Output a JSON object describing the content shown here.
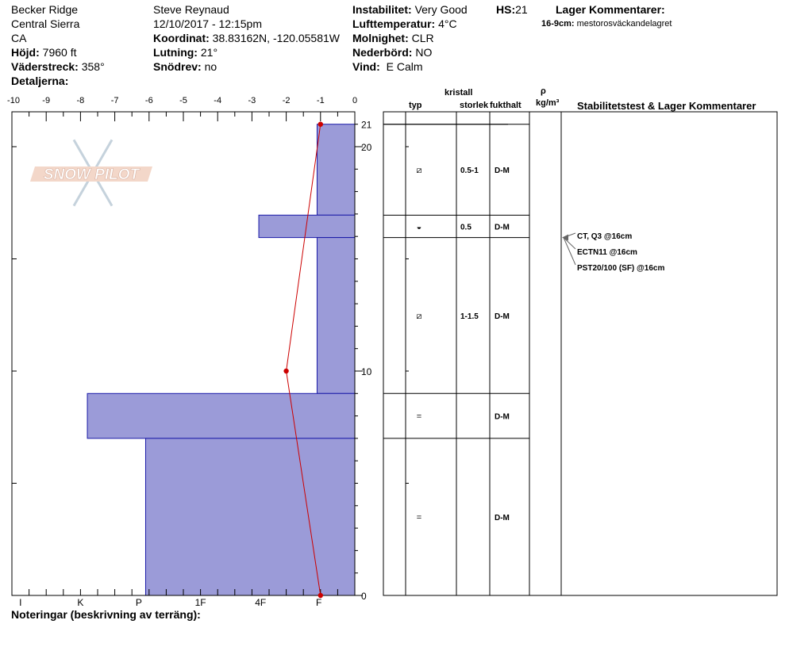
{
  "header": {
    "location": "Becker Ridge",
    "range": "Central Sierra",
    "state": "CA",
    "elevation_label": "Höjd:",
    "elevation": "7960 ft",
    "aspect_label": "Väderstreck:",
    "aspect": "358°",
    "details_label": "Detaljerna:",
    "observer": "Steve Reynaud",
    "datetime": "12/10/2017 - 12:15pm",
    "coord_label": "Koordinat:",
    "coord": "38.83162N, -120.05581W",
    "slope_label": "Lutning:",
    "slope": "21°",
    "drift_label": "Snödrev:",
    "drift": "no",
    "instability_label": "Instabilitet:",
    "instability": "Very Good",
    "airtemp_label": "Lufttemperatur:",
    "airtemp": "4°C",
    "cloud_label": "Molnighet:",
    "cloud": "CLR",
    "precip_label": "Nederbörd:",
    "precip": "NO",
    "wind_label": "Vind:",
    "wind": "E Calm",
    "hs_label": "HS:",
    "hs": "21",
    "layer_comments_label": "Lager Kommentarer:",
    "layer_comment_depth": "16-9cm:",
    "layer_comment_text": "mestorosväckandelagret"
  },
  "logo_text": "SNOW PILOT",
  "notes_label": "Noteringar (beskrivning av terräng):",
  "table": {
    "col_type": "typ",
    "col_crystal": "kristall",
    "col_size": "storlek",
    "col_moisture": "fukthalt",
    "col_density_rho": "ρ",
    "col_density_unit": "kg/m³",
    "col_stability": "Stabilitetstest & Lager Kommentarer"
  },
  "layers": [
    {
      "top": 21,
      "bottom": 16.95,
      "type": "⧄",
      "size": "0.5-1",
      "moisture": "D-M"
    },
    {
      "top": 16.95,
      "bottom": 15.95,
      "type": "◒",
      "size": "0.5",
      "moisture": "D-M"
    },
    {
      "top": 15.95,
      "bottom": 9,
      "type": "⧄",
      "size": "1-1.5",
      "moisture": "D-M"
    },
    {
      "top": 9,
      "bottom": 7,
      "type": "=",
      "size": "",
      "moisture": "D-M"
    },
    {
      "top": 7,
      "bottom": 0,
      "type": "=",
      "size": "",
      "moisture": "D-M"
    }
  ],
  "stability_tests": [
    {
      "text": "CT, Q3 @16cm"
    },
    {
      "text": "ECTN11 @16cm"
    },
    {
      "text": "PST20/100 (SF) @16cm"
    }
  ],
  "chart_data": {
    "type": "area",
    "x_axis_top": {
      "ticks": [
        -10,
        -9,
        -8,
        -7,
        -6,
        -5,
        -4,
        -3,
        -2,
        -1,
        0
      ],
      "range": [
        -10,
        0
      ],
      "label": ""
    },
    "x_axis_bottom": {
      "labels": [
        "I",
        "K",
        "P",
        "1F",
        "4F",
        "F"
      ],
      "positions": [
        -9.75,
        -8,
        -6.3,
        -4.5,
        -2.75,
        -1.05
      ]
    },
    "y_axis": {
      "range": [
        0,
        21.5
      ],
      "labeled_ticks": [
        0,
        10,
        20
      ],
      "hs_tick": 21
    },
    "hardness_profile": [
      {
        "top": 21,
        "bottom": 16.95,
        "hardness": -1.1
      },
      {
        "top": 16.95,
        "bottom": 15.95,
        "hardness": -2.8
      },
      {
        "top": 15.95,
        "bottom": 9,
        "hardness": -1.1
      },
      {
        "top": 9,
        "bottom": 7,
        "hardness": -7.8
      },
      {
        "top": 7,
        "bottom": 0,
        "hardness": -6.1
      }
    ],
    "temperature_profile": [
      {
        "depth": 21,
        "temp": -1
      },
      {
        "depth": 10,
        "temp": -2
      },
      {
        "depth": 0,
        "temp": -1
      }
    ],
    "colors": {
      "hardness_fill": "#9b9bd8",
      "hardness_stroke": "#1a1aa8",
      "temperature": "#cc0000"
    }
  }
}
